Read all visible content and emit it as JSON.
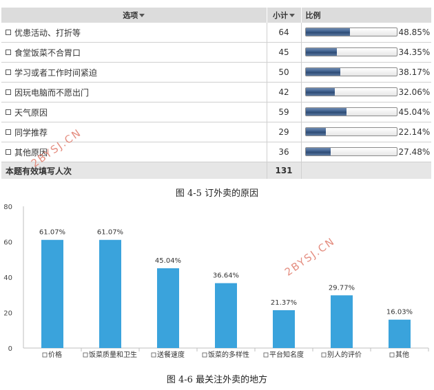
{
  "table": {
    "headers": {
      "option": "选项",
      "count": "小计",
      "ratio": "比例"
    },
    "rows": [
      {
        "label": "优患活动、打折等",
        "count": "64",
        "pct": 48.85,
        "pct_text": "48.85%"
      },
      {
        "label": "食堂饭菜不合胃口",
        "count": "45",
        "pct": 34.35,
        "pct_text": "34.35%"
      },
      {
        "label": "学习或者工作时间紧迫",
        "count": "50",
        "pct": 38.17,
        "pct_text": "38.17%"
      },
      {
        "label": "因玩电脑而不愿出门",
        "count": "42",
        "pct": 32.06,
        "pct_text": "32.06%"
      },
      {
        "label": "天气原因",
        "count": "59",
        "pct": 45.04,
        "pct_text": "45.04%"
      },
      {
        "label": "同学推荐",
        "count": "29",
        "pct": 22.14,
        "pct_text": "22.14%"
      },
      {
        "label": "其他原因",
        "count": "36",
        "pct": 27.48,
        "pct_text": "27.48%"
      }
    ],
    "total_label": "本题有效填写人次",
    "total_value": "131"
  },
  "caption1": "图 4-5 订外卖的原因",
  "caption2": "图 4-6 最关注外卖的地方",
  "watermark": "2BYSJ.CN",
  "colors": {
    "bar": "#3aa3dc",
    "progress": "#3e5f8c",
    "header_bg": "#dcdcdc",
    "watermark": "#e07a6a"
  },
  "chart_data": {
    "type": "bar",
    "categories": [
      "价格",
      "饭菜质量和卫生",
      "送餐速度",
      "饭菜的多样性",
      "平台知名度",
      "别人的评价",
      "其他"
    ],
    "values": [
      61.07,
      61.07,
      45.04,
      36.64,
      21.37,
      29.77,
      16.03
    ],
    "labels": [
      "61.07%",
      "61.07%",
      "45.04%",
      "36.64%",
      "21.37%",
      "29.77%",
      "16.03%"
    ],
    "yticks": [
      "0",
      "20",
      "40",
      "60",
      "80"
    ],
    "ylim": [
      0,
      80
    ],
    "title": "",
    "xlabel": "",
    "ylabel": "",
    "grid": false
  }
}
